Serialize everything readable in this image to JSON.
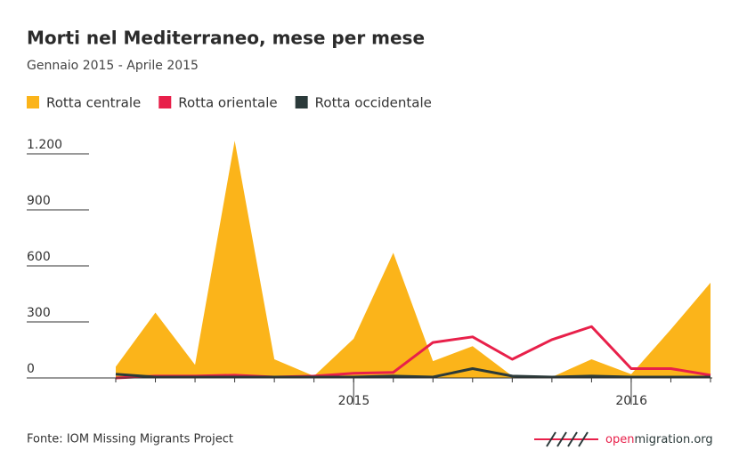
{
  "chart_data": {
    "type": "area",
    "title": "Morti nel Mediterraneo, mese per mese",
    "subtitle": "Gennaio 2015 - Aprile 2015",
    "categories": [
      null,
      null,
      null,
      null,
      null,
      null,
      "2015",
      null,
      null,
      null,
      null,
      null,
      null,
      "2016",
      null,
      null
    ],
    "series": [
      {
        "name": "Rotta centrale",
        "color": "#fbb41a",
        "kind": "area",
        "values": [
          60,
          350,
          70,
          1270,
          100,
          10,
          210,
          670,
          90,
          170,
          10,
          5,
          100,
          20,
          260,
          510
        ]
      },
      {
        "name": "Rotta orientale",
        "color": "#e8204a",
        "kind": "line",
        "values": [
          0,
          10,
          10,
          15,
          5,
          10,
          25,
          30,
          190,
          220,
          100,
          205,
          275,
          50,
          50,
          15
        ]
      },
      {
        "name": "Rotta occidentale",
        "color": "#2b3a3a",
        "kind": "line",
        "values": [
          20,
          5,
          5,
          5,
          5,
          5,
          5,
          10,
          5,
          50,
          10,
          5,
          10,
          5,
          5,
          5
        ]
      }
    ],
    "ylim": [
      0,
      1300
    ],
    "yticks": [
      0,
      300,
      600,
      900,
      {
        "value": 1200,
        "label": "1.200"
      }
    ],
    "grid": true,
    "source": "Fonte: IOM Missing Migrants Project",
    "logo_prefix": "open",
    "logo_suffix": "migration.org"
  }
}
